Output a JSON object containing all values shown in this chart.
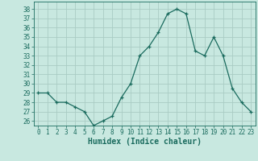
{
  "x": [
    0,
    1,
    2,
    3,
    4,
    5,
    6,
    7,
    8,
    9,
    10,
    11,
    12,
    13,
    14,
    15,
    16,
    17,
    18,
    19,
    20,
    21,
    22,
    23
  ],
  "y": [
    29,
    29,
    28,
    28,
    27.5,
    27,
    25.5,
    26,
    26.5,
    28.5,
    30,
    33,
    34,
    35.5,
    37.5,
    38,
    37.5,
    33.5,
    33,
    35,
    33,
    29.5,
    28,
    27
  ],
  "line_color": "#1a6b5e",
  "marker": "+",
  "marker_color": "#1a6b5e",
  "bg_color": "#c8e8e0",
  "grid_color": "#aaccc4",
  "tick_color": "#1a6b5e",
  "xlabel": "Humidex (Indice chaleur)",
  "xlabel_fontsize": 7,
  "ylabel_ticks": [
    26,
    27,
    28,
    29,
    30,
    31,
    32,
    33,
    34,
    35,
    36,
    37,
    38
  ],
  "ylim": [
    25.5,
    38.8
  ],
  "xlim": [
    -0.5,
    23.5
  ],
  "font_color": "#1a6b5e",
  "tick_fontsize": 5.5
}
